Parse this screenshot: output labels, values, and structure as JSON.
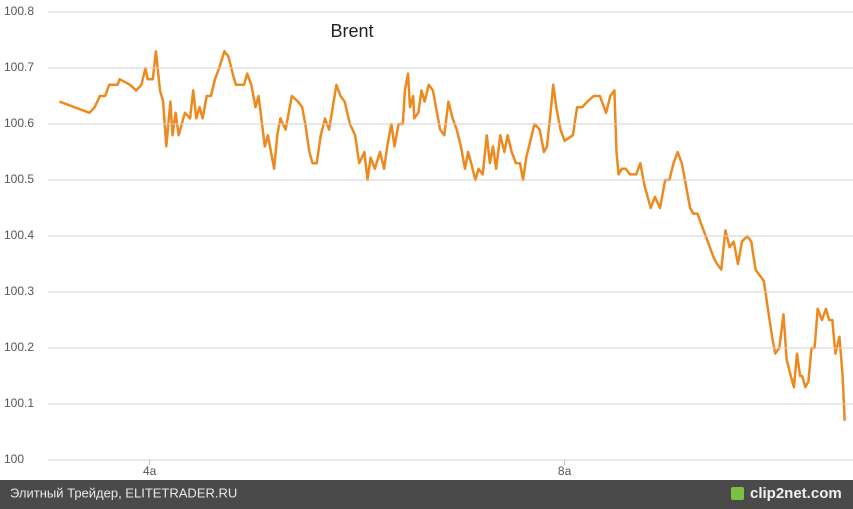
{
  "chart_data": {
    "type": "line",
    "title": "Brent",
    "x": [
      3.13,
      3.42,
      3.47,
      3.52,
      3.57,
      3.61,
      3.69,
      3.71,
      3.81,
      3.87,
      3.92,
      3.96,
      3.98,
      4.03,
      4.06,
      4.1,
      4.13,
      4.16,
      4.2,
      4.22,
      4.25,
      4.28,
      4.34,
      4.39,
      4.42,
      4.45,
      4.48,
      4.51,
      4.55,
      4.59,
      4.63,
      4.67,
      4.72,
      4.76,
      4.8,
      4.83,
      4.91,
      4.94,
      4.98,
      5.02,
      5.05,
      5.11,
      5.14,
      5.17,
      5.2,
      5.23,
      5.26,
      5.31,
      5.37,
      5.43,
      5.47,
      5.5,
      5.54,
      5.57,
      5.61,
      5.65,
      5.69,
      5.73,
      5.8,
      5.84,
      5.88,
      5.93,
      5.98,
      6.02,
      6.07,
      6.1,
      6.13,
      6.17,
      6.22,
      6.26,
      6.29,
      6.33,
      6.36,
      6.4,
      6.44,
      6.46,
      6.49,
      6.51,
      6.54,
      6.55,
      6.59,
      6.62,
      6.65,
      6.69,
      6.73,
      6.77,
      6.8,
      6.84,
      6.88,
      6.92,
      6.96,
      7.0,
      7.04,
      7.07,
      7.1,
      7.14,
      7.17,
      7.21,
      7.25,
      7.28,
      7.31,
      7.34,
      7.38,
      7.42,
      7.45,
      7.49,
      7.53,
      7.57,
      7.6,
      7.63,
      7.67,
      7.71,
      7.76,
      7.8,
      7.83,
      7.87,
      7.89,
      7.92,
      7.96,
      8.0,
      8.08,
      8.12,
      8.17,
      8.22,
      8.28,
      8.34,
      8.4,
      8.44,
      8.48,
      8.5,
      8.52,
      8.55,
      8.59,
      8.63,
      8.69,
      8.73,
      8.77,
      8.8,
      8.83,
      8.87,
      8.92,
      8.97,
      9.01,
      9.05,
      9.09,
      9.13,
      9.17,
      9.21,
      9.24,
      9.28,
      9.32,
      9.36,
      9.4,
      9.44,
      9.47,
      9.51,
      9.55,
      9.59,
      9.63,
      9.67,
      9.71,
      9.76,
      9.8,
      9.84,
      9.88,
      9.92,
      9.96,
      10.0,
      10.03,
      10.07,
      10.11,
      10.14,
      10.18,
      10.21,
      10.24,
      10.27,
      10.29,
      10.32,
      10.35,
      10.38,
      10.41,
      10.44,
      10.48,
      10.52,
      10.55,
      10.58,
      10.61,
      10.65,
      10.68,
      10.7
    ],
    "series": [
      {
        "name": "Brent",
        "color": "#ed8a1f",
        "values": [
          100.64,
          100.62,
          100.63,
          100.65,
          100.65,
          100.67,
          100.67,
          100.68,
          100.67,
          100.66,
          100.67,
          100.7,
          100.68,
          100.68,
          100.73,
          100.66,
          100.64,
          100.56,
          100.64,
          100.58,
          100.62,
          100.58,
          100.62,
          100.61,
          100.66,
          100.61,
          100.63,
          100.61,
          100.65,
          100.65,
          100.68,
          100.7,
          100.73,
          100.72,
          100.69,
          100.67,
          100.67,
          100.69,
          100.67,
          100.63,
          100.65,
          100.56,
          100.58,
          100.55,
          100.52,
          100.58,
          100.61,
          100.59,
          100.65,
          100.64,
          100.63,
          100.6,
          100.55,
          100.53,
          100.53,
          100.58,
          100.61,
          100.59,
          100.67,
          100.65,
          100.64,
          100.6,
          100.58,
          100.53,
          100.55,
          100.5,
          100.54,
          100.52,
          100.55,
          100.52,
          100.56,
          100.6,
          100.56,
          100.6,
          100.6,
          100.66,
          100.69,
          100.63,
          100.65,
          100.61,
          100.62,
          100.66,
          100.64,
          100.67,
          100.66,
          100.62,
          100.59,
          100.58,
          100.64,
          100.61,
          100.59,
          100.56,
          100.52,
          100.55,
          100.53,
          100.5,
          100.52,
          100.51,
          100.58,
          100.53,
          100.56,
          100.52,
          100.58,
          100.55,
          100.58,
          100.55,
          100.53,
          100.53,
          100.5,
          100.54,
          100.57,
          100.6,
          100.59,
          100.55,
          100.56,
          100.63,
          100.67,
          100.63,
          100.59,
          100.57,
          100.58,
          100.63,
          100.63,
          100.64,
          100.65,
          100.65,
          100.62,
          100.65,
          100.66,
          100.55,
          100.51,
          100.52,
          100.52,
          100.51,
          100.51,
          100.53,
          100.49,
          100.47,
          100.45,
          100.47,
          100.45,
          100.5,
          100.5,
          100.53,
          100.55,
          100.53,
          100.49,
          100.45,
          100.44,
          100.44,
          100.42,
          100.4,
          100.38,
          100.36,
          100.35,
          100.34,
          100.41,
          100.38,
          100.39,
          100.35,
          100.39,
          100.4,
          100.39,
          100.34,
          100.33,
          100.32,
          100.27,
          100.22,
          100.19,
          100.2,
          100.26,
          100.18,
          100.15,
          100.13,
          100.19,
          100.15,
          100.15,
          100.13,
          100.14,
          100.2,
          100.2,
          100.27,
          100.25,
          100.27,
          100.25,
          100.25,
          100.19,
          100.22,
          100.15,
          100.07
        ]
      }
    ],
    "xlim": [
      3.02,
      10.78
    ],
    "xticks": [
      {
        "value": 4,
        "label": "4a"
      },
      {
        "value": 8,
        "label": "8a"
      }
    ],
    "ylim": [
      100,
      100.8
    ],
    "yticks": [
      100,
      100.1,
      100.2,
      100.3,
      100.4,
      100.5,
      100.6,
      100.7,
      100.8
    ],
    "grid": true
  },
  "footer": {
    "source": "Элитный Трейдер, ELITETRADER.RU",
    "watermark": "clip2net.com"
  }
}
